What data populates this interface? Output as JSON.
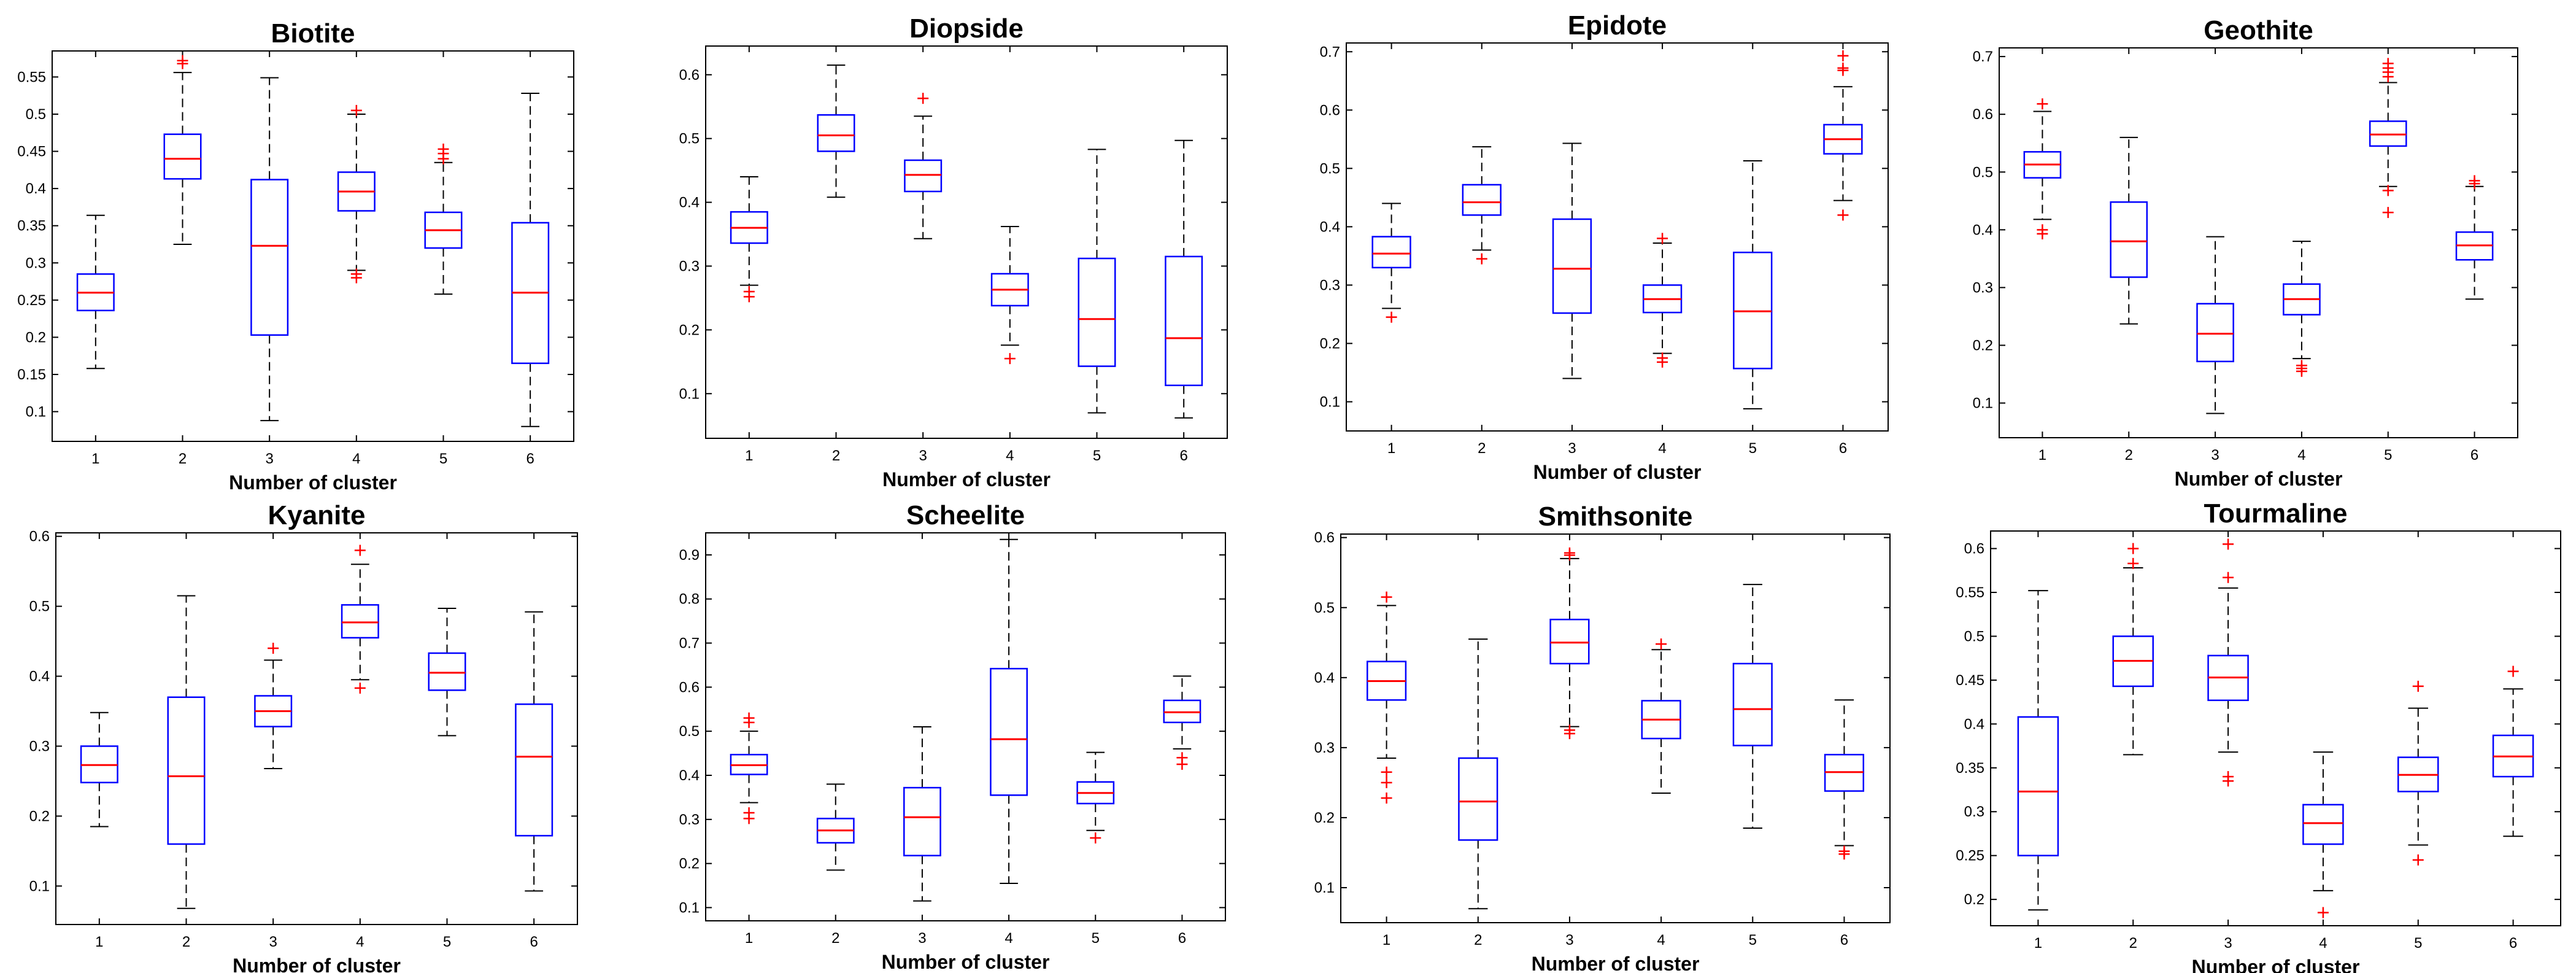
{
  "colors": {
    "box": "#0000ff",
    "median": "#ff0000",
    "outlier": "#ff0000",
    "whisker": "#000000"
  },
  "chart_data": [
    {
      "type": "box",
      "title": "Biotite",
      "xlabel": "Number of cluster",
      "categories": [
        "1",
        "2",
        "3",
        "4",
        "5",
        "6"
      ],
      "ylim": [
        0.06,
        0.585
      ],
      "yticks": [
        0.1,
        0.15,
        0.2,
        0.25,
        0.3,
        0.35,
        0.4,
        0.45,
        0.5,
        0.55
      ],
      "ytick_labels": [
        "0.1",
        "0.15",
        "0.2",
        "0.25",
        "0.3",
        "0.35",
        "0.4",
        "0.45",
        "0.5",
        "0.55"
      ],
      "boxes": [
        {
          "min": 0.158,
          "q1": 0.236,
          "median": 0.26,
          "q3": 0.285,
          "max": 0.364,
          "outliers": []
        },
        {
          "min": 0.325,
          "q1": 0.413,
          "median": 0.44,
          "q3": 0.473,
          "max": 0.556,
          "outliers": [
            0.568,
            0.572
          ]
        },
        {
          "min": 0.088,
          "q1": 0.203,
          "median": 0.323,
          "q3": 0.412,
          "max": 0.549,
          "outliers": []
        },
        {
          "min": 0.29,
          "q1": 0.37,
          "median": 0.396,
          "q3": 0.422,
          "max": 0.5,
          "outliers": [
            0.505,
            0.28,
            0.285
          ]
        },
        {
          "min": 0.258,
          "q1": 0.32,
          "median": 0.344,
          "q3": 0.368,
          "max": 0.435,
          "outliers": [
            0.44,
            0.447,
            0.453
          ]
        },
        {
          "min": 0.08,
          "q1": 0.165,
          "median": 0.26,
          "q3": 0.354,
          "max": 0.528,
          "outliers": []
        }
      ]
    },
    {
      "type": "box",
      "title": "Diopside",
      "xlabel": "Number of cluster",
      "categories": [
        "1",
        "2",
        "3",
        "4",
        "5",
        "6"
      ],
      "ylim": [
        0.03,
        0.645
      ],
      "yticks": [
        0.1,
        0.2,
        0.3,
        0.4,
        0.5,
        0.6
      ],
      "ytick_labels": [
        "0.1",
        "0.2",
        "0.3",
        "0.4",
        "0.5",
        "0.6"
      ],
      "boxes": [
        {
          "min": 0.27,
          "q1": 0.336,
          "median": 0.36,
          "q3": 0.385,
          "max": 0.44,
          "outliers": [
            0.26,
            0.252
          ]
        },
        {
          "min": 0.408,
          "q1": 0.48,
          "median": 0.505,
          "q3": 0.537,
          "max": 0.615,
          "outliers": []
        },
        {
          "min": 0.343,
          "q1": 0.417,
          "median": 0.443,
          "q3": 0.466,
          "max": 0.535,
          "outliers": [
            0.563
          ]
        },
        {
          "min": 0.176,
          "q1": 0.238,
          "median": 0.263,
          "q3": 0.288,
          "max": 0.362,
          "outliers": [
            0.155
          ]
        },
        {
          "min": 0.07,
          "q1": 0.143,
          "median": 0.217,
          "q3": 0.312,
          "max": 0.483,
          "outliers": []
        },
        {
          "min": 0.062,
          "q1": 0.113,
          "median": 0.187,
          "q3": 0.315,
          "max": 0.497,
          "outliers": []
        }
      ]
    },
    {
      "type": "box",
      "title": "Epidote",
      "xlabel": "Number of cluster",
      "categories": [
        "1",
        "2",
        "3",
        "4",
        "5",
        "6"
      ],
      "ylim": [
        0.05,
        0.715
      ],
      "yticks": [
        0.1,
        0.2,
        0.3,
        0.4,
        0.5,
        0.6,
        0.7
      ],
      "ytick_labels": [
        "0.1",
        "0.2",
        "0.3",
        "0.4",
        "0.5",
        "0.6",
        "0.7"
      ],
      "boxes": [
        {
          "min": 0.26,
          "q1": 0.33,
          "median": 0.354,
          "q3": 0.383,
          "max": 0.44,
          "outliers": [
            0.245
          ]
        },
        {
          "min": 0.36,
          "q1": 0.42,
          "median": 0.442,
          "q3": 0.472,
          "max": 0.537,
          "outliers": [
            0.345
          ]
        },
        {
          "min": 0.14,
          "q1": 0.252,
          "median": 0.328,
          "q3": 0.413,
          "max": 0.543,
          "outliers": []
        },
        {
          "min": 0.183,
          "q1": 0.253,
          "median": 0.276,
          "q3": 0.3,
          "max": 0.372,
          "outliers": [
            0.38,
            0.175,
            0.168
          ]
        },
        {
          "min": 0.088,
          "q1": 0.157,
          "median": 0.255,
          "q3": 0.356,
          "max": 0.513,
          "outliers": []
        },
        {
          "min": 0.445,
          "q1": 0.525,
          "median": 0.55,
          "q3": 0.575,
          "max": 0.64,
          "outliers": [
            0.668,
            0.672,
            0.693,
            0.42
          ]
        }
      ]
    },
    {
      "type": "box",
      "title": "Geothite",
      "xlabel": "Number of cluster",
      "categories": [
        "1",
        "2",
        "3",
        "4",
        "5",
        "6"
      ],
      "ylim": [
        0.04,
        0.715
      ],
      "yticks": [
        0.1,
        0.2,
        0.3,
        0.4,
        0.5,
        0.6,
        0.7
      ],
      "ytick_labels": [
        "0.1",
        "0.2",
        "0.3",
        "0.4",
        "0.5",
        "0.6",
        "0.7"
      ],
      "boxes": [
        {
          "min": 0.418,
          "q1": 0.49,
          "median": 0.513,
          "q3": 0.535,
          "max": 0.605,
          "outliers": [
            0.618,
            0.4,
            0.393
          ]
        },
        {
          "min": 0.237,
          "q1": 0.318,
          "median": 0.38,
          "q3": 0.448,
          "max": 0.56,
          "outliers": []
        },
        {
          "min": 0.082,
          "q1": 0.172,
          "median": 0.22,
          "q3": 0.272,
          "max": 0.388,
          "outliers": []
        },
        {
          "min": 0.177,
          "q1": 0.253,
          "median": 0.28,
          "q3": 0.306,
          "max": 0.38,
          "outliers": [
            0.165,
            0.16,
            0.155
          ]
        },
        {
          "min": 0.475,
          "q1": 0.545,
          "median": 0.565,
          "q3": 0.588,
          "max": 0.655,
          "outliers": [
            0.665,
            0.673,
            0.68,
            0.688,
            0.468,
            0.43
          ]
        },
        {
          "min": 0.28,
          "q1": 0.348,
          "median": 0.373,
          "q3": 0.396,
          "max": 0.475,
          "outliers": [
            0.48,
            0.485
          ]
        }
      ]
    },
    {
      "type": "box",
      "title": "Kyanite",
      "xlabel": "Number of cluster",
      "categories": [
        "1",
        "2",
        "3",
        "4",
        "5",
        "6"
      ],
      "ylim": [
        0.045,
        0.605
      ],
      "yticks": [
        0.1,
        0.2,
        0.3,
        0.4,
        0.5,
        0.6
      ],
      "ytick_labels": [
        "0.1",
        "0.2",
        "0.3",
        "0.4",
        "0.5",
        "0.6"
      ],
      "boxes": [
        {
          "min": 0.185,
          "q1": 0.248,
          "median": 0.273,
          "q3": 0.3,
          "max": 0.348,
          "outliers": []
        },
        {
          "min": 0.068,
          "q1": 0.16,
          "median": 0.257,
          "q3": 0.37,
          "max": 0.515,
          "outliers": []
        },
        {
          "min": 0.268,
          "q1": 0.328,
          "median": 0.35,
          "q3": 0.372,
          "max": 0.423,
          "outliers": [
            0.44
          ]
        },
        {
          "min": 0.395,
          "q1": 0.455,
          "median": 0.477,
          "q3": 0.502,
          "max": 0.56,
          "outliers": [
            0.58,
            0.383
          ]
        },
        {
          "min": 0.315,
          "q1": 0.38,
          "median": 0.405,
          "q3": 0.433,
          "max": 0.497,
          "outliers": []
        },
        {
          "min": 0.093,
          "q1": 0.172,
          "median": 0.285,
          "q3": 0.36,
          "max": 0.492,
          "outliers": []
        }
      ]
    },
    {
      "type": "box",
      "title": "Scheelite",
      "xlabel": "Number of cluster",
      "categories": [
        "1",
        "2",
        "3",
        "4",
        "5",
        "6"
      ],
      "ylim": [
        0.07,
        0.95
      ],
      "yticks": [
        0.1,
        0.2,
        0.3,
        0.4,
        0.5,
        0.6,
        0.7,
        0.8,
        0.9
      ],
      "ytick_labels": [
        "0.1",
        "0.2",
        "0.3",
        "0.4",
        "0.5",
        "0.6",
        "0.7",
        "0.8",
        "0.9"
      ],
      "boxes": [
        {
          "min": 0.338,
          "q1": 0.402,
          "median": 0.423,
          "q3": 0.447,
          "max": 0.5,
          "outliers": [
            0.53,
            0.52,
            0.315,
            0.302
          ]
        },
        {
          "min": 0.185,
          "q1": 0.247,
          "median": 0.275,
          "q3": 0.302,
          "max": 0.38,
          "outliers": []
        },
        {
          "min": 0.115,
          "q1": 0.218,
          "median": 0.305,
          "q3": 0.372,
          "max": 0.51,
          "outliers": []
        },
        {
          "min": 0.155,
          "q1": 0.355,
          "median": 0.482,
          "q3": 0.642,
          "max": 0.935,
          "outliers": []
        },
        {
          "min": 0.275,
          "q1": 0.336,
          "median": 0.36,
          "q3": 0.385,
          "max": 0.452,
          "outliers": [
            0.258
          ]
        },
        {
          "min": 0.46,
          "q1": 0.52,
          "median": 0.543,
          "q3": 0.57,
          "max": 0.625,
          "outliers": [
            0.44,
            0.425
          ]
        }
      ]
    },
    {
      "type": "box",
      "title": "Smithsonite",
      "xlabel": "Number of cluster",
      "categories": [
        "1",
        "2",
        "3",
        "4",
        "5",
        "6"
      ],
      "ylim": [
        0.05,
        0.605
      ],
      "yticks": [
        0.1,
        0.2,
        0.3,
        0.4,
        0.5,
        0.6
      ],
      "ytick_labels": [
        "0.1",
        "0.2",
        "0.3",
        "0.4",
        "0.5",
        "0.6"
      ],
      "boxes": [
        {
          "min": 0.285,
          "q1": 0.368,
          "median": 0.395,
          "q3": 0.423,
          "max": 0.503,
          "outliers": [
            0.515,
            0.265,
            0.25,
            0.228
          ]
        },
        {
          "min": 0.07,
          "q1": 0.168,
          "median": 0.223,
          "q3": 0.285,
          "max": 0.455,
          "outliers": []
        },
        {
          "min": 0.33,
          "q1": 0.42,
          "median": 0.45,
          "q3": 0.483,
          "max": 0.57,
          "outliers": [
            0.578,
            0.575,
            0.325,
            0.32
          ]
        },
        {
          "min": 0.235,
          "q1": 0.313,
          "median": 0.34,
          "q3": 0.367,
          "max": 0.44,
          "outliers": [
            0.448
          ]
        },
        {
          "min": 0.185,
          "q1": 0.303,
          "median": 0.355,
          "q3": 0.42,
          "max": 0.533,
          "outliers": []
        },
        {
          "min": 0.16,
          "q1": 0.238,
          "median": 0.265,
          "q3": 0.29,
          "max": 0.368,
          "outliers": [
            0.152,
            0.148
          ]
        }
      ]
    },
    {
      "type": "box",
      "title": "Tourmaline",
      "xlabel": "Number of cluster",
      "categories": [
        "1",
        "2",
        "3",
        "4",
        "5",
        "6"
      ],
      "ylim": [
        0.17,
        0.62
      ],
      "yticks": [
        0.2,
        0.25,
        0.3,
        0.35,
        0.4,
        0.45,
        0.5,
        0.55,
        0.6
      ],
      "ytick_labels": [
        "0.2",
        "0.25",
        "0.3",
        "0.35",
        "0.4",
        "0.45",
        "0.5",
        "0.55",
        "0.6"
      ],
      "boxes": [
        {
          "min": 0.188,
          "q1": 0.25,
          "median": 0.323,
          "q3": 0.408,
          "max": 0.552,
          "outliers": []
        },
        {
          "min": 0.365,
          "q1": 0.443,
          "median": 0.472,
          "q3": 0.5,
          "max": 0.578,
          "outliers": [
            0.6,
            0.583
          ]
        },
        {
          "min": 0.368,
          "q1": 0.427,
          "median": 0.453,
          "q3": 0.478,
          "max": 0.555,
          "outliers": [
            0.605,
            0.567,
            0.34,
            0.335
          ]
        },
        {
          "min": 0.21,
          "q1": 0.263,
          "median": 0.287,
          "q3": 0.308,
          "max": 0.368,
          "outliers": [
            0.185
          ]
        },
        {
          "min": 0.262,
          "q1": 0.323,
          "median": 0.342,
          "q3": 0.362,
          "max": 0.418,
          "outliers": [
            0.443,
            0.245
          ]
        },
        {
          "min": 0.272,
          "q1": 0.34,
          "median": 0.363,
          "q3": 0.387,
          "max": 0.44,
          "outliers": [
            0.46
          ]
        }
      ]
    }
  ]
}
